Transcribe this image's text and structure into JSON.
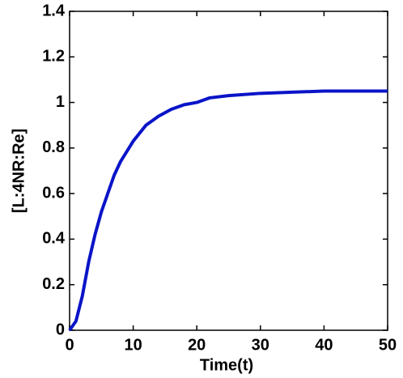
{
  "chart_data": {
    "type": "line",
    "xlabel": "Time(t)",
    "ylabel": "[L:4NR:Re]",
    "x": [
      0,
      1,
      2,
      3,
      4,
      5,
      6,
      7,
      8,
      10,
      12,
      14,
      16,
      18,
      20,
      22,
      25,
      30,
      35,
      40,
      45,
      50
    ],
    "series": [
      {
        "color": "#0a14c8",
        "values": [
          0,
          0.04,
          0.15,
          0.3,
          0.42,
          0.52,
          0.6,
          0.68,
          0.74,
          0.83,
          0.9,
          0.94,
          0.97,
          0.99,
          1.0,
          1.02,
          1.03,
          1.04,
          1.045,
          1.05,
          1.05,
          1.05
        ]
      }
    ],
    "xlim": [
      0,
      50
    ],
    "xticks": [
      0,
      10,
      20,
      30,
      40,
      50
    ],
    "ylim": [
      0,
      1.4
    ],
    "yticks": [
      0,
      0.2,
      0.4,
      0.6,
      0.8,
      1,
      1.2,
      1.4
    ]
  }
}
